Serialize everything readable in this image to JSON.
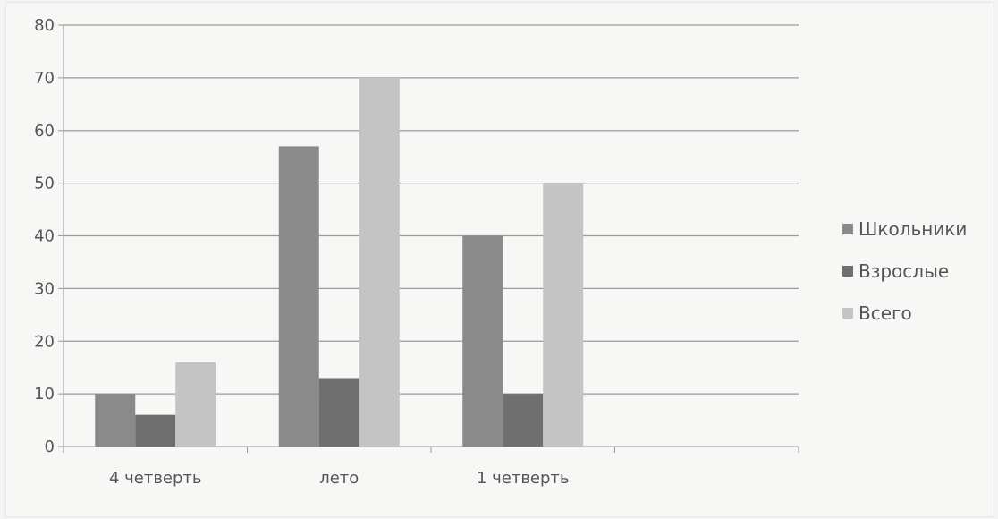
{
  "chart_data": {
    "type": "bar",
    "categories": [
      "4 четверть",
      "лето",
      "1 четверть"
    ],
    "series": [
      {
        "name": "Школьники",
        "values": [
          10,
          57,
          40
        ],
        "color": "#8a8a8a"
      },
      {
        "name": "Взрослые",
        "values": [
          6,
          13,
          10
        ],
        "color": "#6f6f6f"
      },
      {
        "name": "Всего",
        "values": [
          16,
          70,
          50
        ],
        "color": "#c4c4c4"
      }
    ],
    "ylim": [
      0,
      80
    ],
    "yticks": [
      0,
      10,
      20,
      30,
      40,
      50,
      60,
      70,
      80
    ],
    "grid": true,
    "legend_position": "right"
  }
}
